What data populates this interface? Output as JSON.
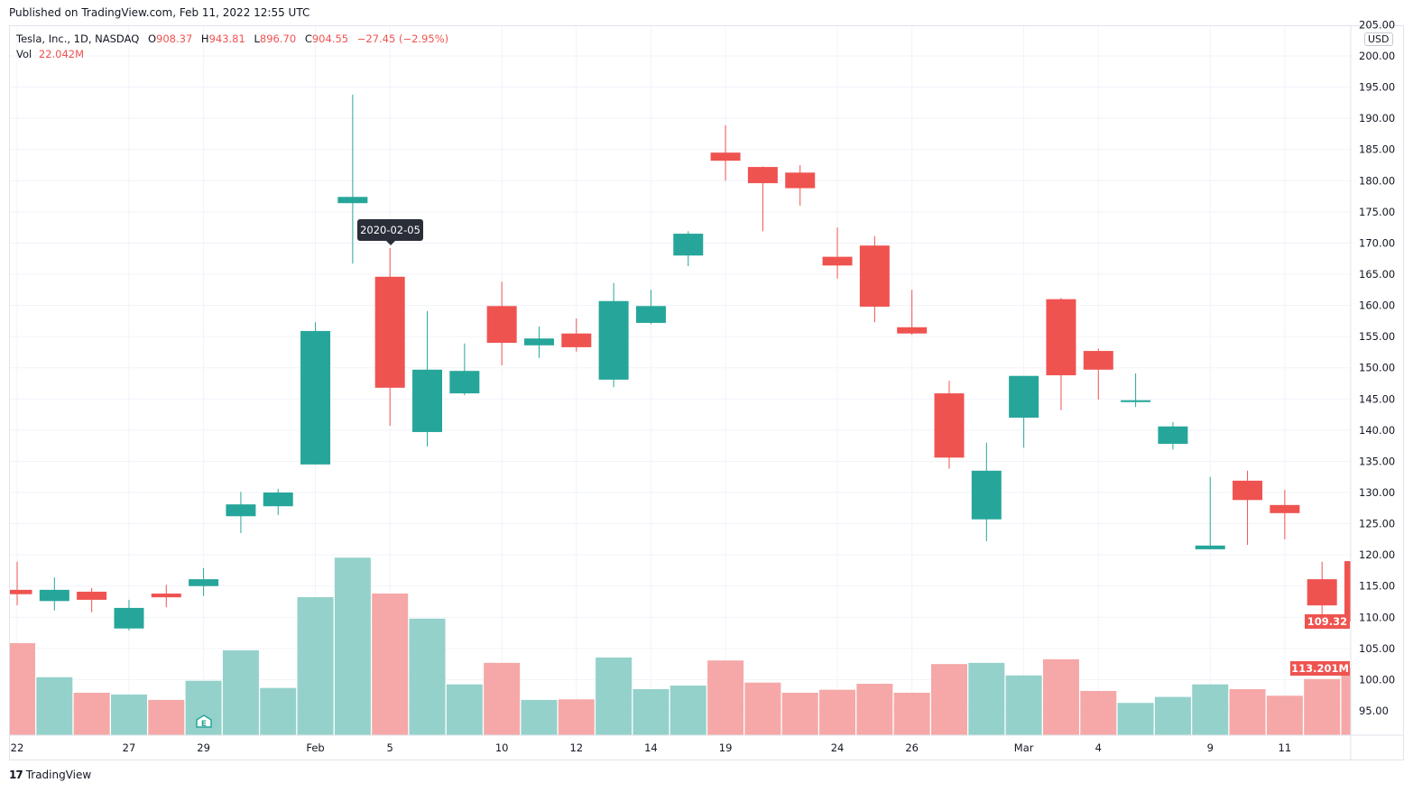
{
  "published": "Published on TradingView.com, Feb 11, 2022 12:55 UTC",
  "legend": {
    "symbol": "Tesla, Inc., 1D, NASDAQ",
    "o_label": "O",
    "o": "908.37",
    "h_label": "H",
    "h": "943.81",
    "l_label": "L",
    "l": "896.70",
    "c_label": "C",
    "c": "904.55",
    "change": "−27.45 (−2.95%)",
    "vol_label": "Vol",
    "vol": "22.042M"
  },
  "currency": "USD",
  "tooltip": "2020-02-05",
  "last_price": "109.32",
  "last_volume": "113.201M",
  "brand": "TradingView",
  "colors": {
    "up": "#26a69a",
    "down": "#ef5350",
    "up_volume": "#94d1cb",
    "down_volume": "#f5a8a7"
  },
  "chart_data": {
    "type": "candlestick",
    "price_axis": {
      "ticks": [
        "205.00",
        "200.00",
        "195.00",
        "190.00",
        "185.00",
        "180.00",
        "175.00",
        "170.00",
        "165.00",
        "160.00",
        "155.00",
        "150.00",
        "145.00",
        "140.00",
        "135.00",
        "130.00",
        "125.00",
        "120.00",
        "115.00",
        "110.00",
        "105.00",
        "100.00",
        "95.00"
      ],
      "range": [
        91,
        208
      ]
    },
    "time_axis": {
      "ticks": [
        {
          "label": "22",
          "date": "2020-01-22"
        },
        {
          "label": "27",
          "date": "2020-01-27"
        },
        {
          "label": "29",
          "date": "2020-01-29"
        },
        {
          "label": "Feb",
          "date": "2020-02-03"
        },
        {
          "label": "5",
          "date": "2020-02-05"
        },
        {
          "label": "10",
          "date": "2020-02-10"
        },
        {
          "label": "12",
          "date": "2020-02-12"
        },
        {
          "label": "14",
          "date": "2020-02-14"
        },
        {
          "label": "19",
          "date": "2020-02-19"
        },
        {
          "label": "24",
          "date": "2020-02-24"
        },
        {
          "label": "26",
          "date": "2020-02-26"
        },
        {
          "label": "Mar",
          "date": "2020-03-02"
        },
        {
          "label": "4",
          "date": "2020-03-04"
        },
        {
          "label": "9",
          "date": "2020-03-09"
        },
        {
          "label": "11",
          "date": "2020-03-11"
        }
      ]
    },
    "grid": true,
    "volume_unit": "M",
    "candles": [
      {
        "date": "2020-01-22",
        "o": 114.4,
        "h": 118.9,
        "l": 111.9,
        "c": 113.7,
        "v": 154
      },
      {
        "date": "2020-01-23",
        "o": 112.6,
        "h": 116.4,
        "l": 111.1,
        "c": 114.4,
        "v": 97
      },
      {
        "date": "2020-01-24",
        "o": 114.1,
        "h": 114.7,
        "l": 110.8,
        "c": 112.8,
        "v": 71
      },
      {
        "date": "2020-01-27",
        "o": 108.2,
        "h": 112.8,
        "l": 107.9,
        "c": 111.5,
        "v": 68
      },
      {
        "date": "2020-01-28",
        "o": 113.8,
        "h": 115.2,
        "l": 111.6,
        "c": 113.2,
        "v": 59
      },
      {
        "date": "2020-01-29",
        "o": 115.0,
        "h": 117.9,
        "l": 113.4,
        "c": 116.1,
        "v": 91
      },
      {
        "date": "2020-01-30",
        "o": 126.2,
        "h": 130.1,
        "l": 123.5,
        "c": 128.1,
        "v": 142
      },
      {
        "date": "2020-01-31",
        "o": 127.8,
        "h": 130.6,
        "l": 126.4,
        "c": 130.0,
        "v": 79
      },
      {
        "date": "2020-02-03",
        "o": 134.5,
        "h": 157.3,
        "l": 134.5,
        "c": 155.9,
        "v": 231
      },
      {
        "date": "2020-02-04",
        "o": 176.4,
        "h": 193.8,
        "l": 166.7,
        "c": 177.4,
        "v": 297
      },
      {
        "date": "2020-02-05",
        "o": 164.6,
        "h": 169.2,
        "l": 140.7,
        "c": 146.8,
        "v": 237
      },
      {
        "date": "2020-02-06",
        "o": 139.7,
        "h": 159.1,
        "l": 137.4,
        "c": 149.7,
        "v": 195
      },
      {
        "date": "2020-02-07",
        "o": 145.9,
        "h": 153.9,
        "l": 145.6,
        "c": 149.5,
        "v": 85
      },
      {
        "date": "2020-02-10",
        "o": 159.9,
        "h": 163.8,
        "l": 150.4,
        "c": 154.0,
        "v": 121
      },
      {
        "date": "2020-02-11",
        "o": 153.6,
        "h": 156.6,
        "l": 151.6,
        "c": 154.7,
        "v": 59
      },
      {
        "date": "2020-02-12",
        "o": 155.5,
        "h": 157.9,
        "l": 152.6,
        "c": 153.3,
        "v": 60
      },
      {
        "date": "2020-02-13",
        "o": 148.1,
        "h": 163.6,
        "l": 146.9,
        "c": 160.7,
        "v": 130
      },
      {
        "date": "2020-02-14",
        "o": 157.2,
        "h": 162.5,
        "l": 157.0,
        "c": 159.9,
        "v": 77
      },
      {
        "date": "2020-02-18",
        "o": 168.0,
        "h": 171.9,
        "l": 166.3,
        "c": 171.5,
        "v": 83
      },
      {
        "date": "2020-02-19",
        "o": 184.5,
        "h": 188.9,
        "l": 180.0,
        "c": 183.2,
        "v": 125
      },
      {
        "date": "2020-02-20",
        "o": 182.2,
        "h": 182.3,
        "l": 171.9,
        "c": 179.6,
        "v": 88
      },
      {
        "date": "2020-02-21",
        "o": 181.3,
        "h": 182.5,
        "l": 176.0,
        "c": 178.8,
        "v": 71
      },
      {
        "date": "2020-02-24",
        "o": 167.8,
        "h": 172.5,
        "l": 164.3,
        "c": 166.4,
        "v": 76
      },
      {
        "date": "2020-02-25",
        "o": 169.6,
        "h": 171.1,
        "l": 157.3,
        "c": 159.8,
        "v": 86
      },
      {
        "date": "2020-02-26",
        "o": 156.5,
        "h": 162.5,
        "l": 155.3,
        "c": 155.5,
        "v": 71
      },
      {
        "date": "2020-02-27",
        "o": 145.9,
        "h": 147.9,
        "l": 133.8,
        "c": 135.6,
        "v": 119
      },
      {
        "date": "2020-02-28",
        "o": 125.7,
        "h": 138.0,
        "l": 122.2,
        "c": 133.5,
        "v": 121
      },
      {
        "date": "2020-03-02",
        "o": 142.0,
        "h": 148.7,
        "l": 137.2,
        "c": 148.7,
        "v": 100
      },
      {
        "date": "2020-03-03",
        "o": 161.0,
        "h": 161.2,
        "l": 143.2,
        "c": 148.8,
        "v": 127
      },
      {
        "date": "2020-03-04",
        "o": 152.7,
        "h": 153.1,
        "l": 144.9,
        "c": 149.7,
        "v": 74
      },
      {
        "date": "2020-03-05",
        "o": 144.5,
        "h": 149.1,
        "l": 143.7,
        "c": 144.8,
        "v": 54
      },
      {
        "date": "2020-03-06",
        "o": 137.8,
        "h": 141.3,
        "l": 136.9,
        "c": 140.6,
        "v": 64
      },
      {
        "date": "2020-03-09",
        "o": 120.9,
        "h": 132.5,
        "l": 120.9,
        "c": 121.5,
        "v": 85
      },
      {
        "date": "2020-03-10",
        "o": 131.9,
        "h": 133.5,
        "l": 121.6,
        "c": 128.8,
        "v": 77
      },
      {
        "date": "2020-03-11",
        "o": 128.0,
        "h": 130.4,
        "l": 122.5,
        "c": 126.7,
        "v": 66
      },
      {
        "date": "2020-03-12",
        "o": 116.1,
        "h": 118.9,
        "l": 109.2,
        "c": 111.9,
        "v": 94
      },
      {
        "date": "2020-03-13",
        "o": 119.0,
        "h": 119.0,
        "l": 109.0,
        "c": 109.32,
        "v": 113.201
      }
    ]
  }
}
